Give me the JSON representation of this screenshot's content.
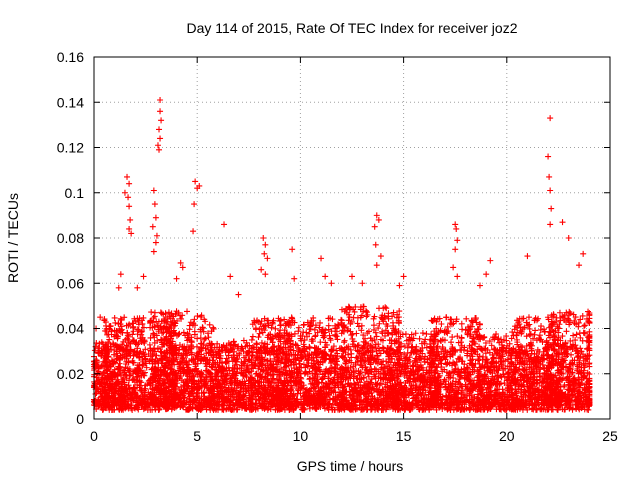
{
  "chart_data": {
    "type": "scatter",
    "title": "Day 114 of 2015, Rate Of TEC Index for receiver joz2",
    "xlabel": "GPS time / hours",
    "ylabel": "ROTI / TECUs",
    "xlim": [
      0,
      25
    ],
    "ylim": [
      0,
      0.16
    ],
    "xticks": [
      0,
      5,
      10,
      15,
      20,
      25
    ],
    "xtick_labels": [
      "0",
      "5",
      "10",
      "15",
      "20",
      "25"
    ],
    "yticks": [
      0,
      0.02,
      0.04,
      0.06,
      0.08,
      0.1,
      0.12,
      0.14,
      0.16
    ],
    "ytick_labels": [
      "0",
      "0.02",
      "0.04",
      "0.06",
      "0.08",
      "0.1",
      "0.12",
      "0.14",
      "0.16"
    ],
    "grid": true,
    "marker": "plus",
    "marker_color": "#ff0000",
    "series": [
      {
        "name": "ROTI",
        "points": [
          [
            3.2,
            0.141
          ],
          [
            3.2,
            0.136
          ],
          [
            3.25,
            0.132
          ],
          [
            3.15,
            0.128
          ],
          [
            3.2,
            0.124
          ],
          [
            3.1,
            0.121
          ],
          [
            3.15,
            0.119
          ],
          [
            22.1,
            0.133
          ],
          [
            22.0,
            0.116
          ],
          [
            22.05,
            0.107
          ],
          [
            22.1,
            0.101
          ],
          [
            22.15,
            0.093
          ],
          [
            22.1,
            0.086
          ],
          [
            1.6,
            0.107
          ],
          [
            1.7,
            0.104
          ],
          [
            1.5,
            0.1
          ],
          [
            1.65,
            0.098
          ],
          [
            1.7,
            0.094
          ],
          [
            1.75,
            0.088
          ],
          [
            1.7,
            0.084
          ],
          [
            1.8,
            0.082
          ],
          [
            4.9,
            0.105
          ],
          [
            5.0,
            0.102
          ],
          [
            5.1,
            0.103
          ],
          [
            4.85,
            0.095
          ],
          [
            4.8,
            0.083
          ],
          [
            6.3,
            0.086
          ],
          [
            2.9,
            0.101
          ],
          [
            2.95,
            0.095
          ],
          [
            3.0,
            0.089
          ],
          [
            2.85,
            0.085
          ],
          [
            3.05,
            0.081
          ],
          [
            3.0,
            0.078
          ],
          [
            2.9,
            0.074
          ],
          [
            13.7,
            0.09
          ],
          [
            13.8,
            0.088
          ],
          [
            13.6,
            0.085
          ],
          [
            13.65,
            0.077
          ],
          [
            13.9,
            0.072
          ],
          [
            13.7,
            0.068
          ],
          [
            17.5,
            0.086
          ],
          [
            17.55,
            0.084
          ],
          [
            17.6,
            0.079
          ],
          [
            17.5,
            0.075
          ],
          [
            17.4,
            0.067
          ],
          [
            17.6,
            0.063
          ],
          [
            8.2,
            0.08
          ],
          [
            8.3,
            0.077
          ],
          [
            8.25,
            0.073
          ],
          [
            8.4,
            0.071
          ],
          [
            8.1,
            0.066
          ],
          [
            8.3,
            0.064
          ],
          [
            9.6,
            0.075
          ],
          [
            9.7,
            0.062
          ],
          [
            22.7,
            0.087
          ],
          [
            23.0,
            0.08
          ],
          [
            23.7,
            0.073
          ],
          [
            23.5,
            0.068
          ],
          [
            21.0,
            0.072
          ],
          [
            15.0,
            0.063
          ],
          [
            14.8,
            0.059
          ],
          [
            19.2,
            0.07
          ],
          [
            19.0,
            0.064
          ],
          [
            18.7,
            0.059
          ],
          [
            11.2,
            0.063
          ],
          [
            11.5,
            0.06
          ],
          [
            11.0,
            0.071
          ],
          [
            12.5,
            0.063
          ],
          [
            13.0,
            0.06
          ],
          [
            4.2,
            0.069
          ],
          [
            4.3,
            0.067
          ],
          [
            4.0,
            0.062
          ],
          [
            6.6,
            0.063
          ],
          [
            7.0,
            0.055
          ],
          [
            0.3,
            0.045
          ],
          [
            0.1,
            0.04
          ],
          [
            1.2,
            0.058
          ],
          [
            1.3,
            0.064
          ],
          [
            2.4,
            0.063
          ],
          [
            2.1,
            0.058
          ]
        ]
      }
    ],
    "dense_clusters": [
      {
        "center": 0.3,
        "width": 0.4,
        "peak": 0.034,
        "count": 110
      },
      {
        "center": 1.5,
        "width": 1.0,
        "peak": 0.045,
        "count": 360
      },
      {
        "center": 3.3,
        "width": 0.6,
        "peak": 0.048,
        "count": 260
      },
      {
        "center": 4.6,
        "width": 1.2,
        "peak": 0.048,
        "count": 360
      },
      {
        "center": 6.6,
        "width": 1.0,
        "peak": 0.035,
        "count": 220
      },
      {
        "center": 8.6,
        "width": 1.0,
        "peak": 0.045,
        "count": 300
      },
      {
        "center": 10.5,
        "width": 1.6,
        "peak": 0.045,
        "count": 420
      },
      {
        "center": 13.4,
        "width": 1.4,
        "peak": 0.05,
        "count": 420
      },
      {
        "center": 15.5,
        "width": 1.2,
        "peak": 0.038,
        "count": 300
      },
      {
        "center": 17.5,
        "width": 1.2,
        "peak": 0.045,
        "count": 320
      },
      {
        "center": 19.5,
        "width": 1.0,
        "peak": 0.038,
        "count": 260
      },
      {
        "center": 21.4,
        "width": 1.2,
        "peak": 0.045,
        "count": 360
      },
      {
        "center": 23.1,
        "width": 1.2,
        "peak": 0.048,
        "count": 360
      }
    ]
  }
}
